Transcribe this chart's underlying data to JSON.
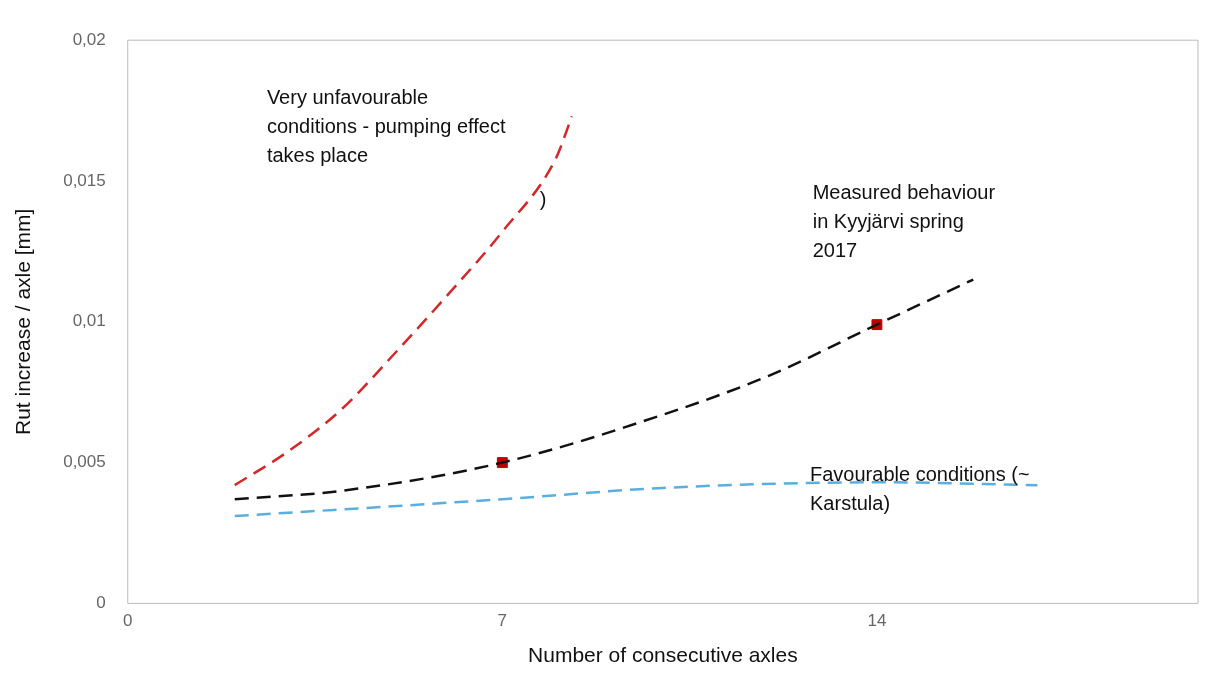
{
  "chart_data": {
    "type": "line",
    "xlabel": "Number of consecutive axles",
    "ylabel": "Rut increase / axle [mm]",
    "xlim": [
      0,
      20
    ],
    "xticks": [
      0,
      7,
      14
    ],
    "ylim": [
      0,
      0.02
    ],
    "yticks": [
      0,
      {
        "value": 0.005,
        "label": "0,005"
      },
      {
        "value": 0.01,
        "label": "0,01"
      },
      {
        "value": 0.015,
        "label": "0,015"
      },
      {
        "value": 0.02,
        "label": "0,02"
      }
    ],
    "grid": false,
    "legend": false,
    "line_style": "dashed",
    "series": [
      {
        "name": "Very unfavourable conditions - pumping effect takes place",
        "color": "#d62728",
        "x": [
          2,
          3,
          4,
          5,
          6,
          7,
          8,
          8.3
        ],
        "values": [
          0.0042,
          0.0054,
          0.0069,
          0.0089,
          0.011,
          0.0132,
          0.0158,
          0.0173
        ]
      },
      {
        "name": "Measured behaviour in Kyyjärvi spring 2017",
        "color": "#111111",
        "x": [
          2,
          4,
          7,
          10,
          12,
          14,
          15.8
        ],
        "values": [
          0.0037,
          0.004,
          0.005,
          0.0067,
          0.0081,
          0.0099,
          0.0115
        ]
      },
      {
        "name": "Favourable conditions (~ Karstula)",
        "color": "#5aaee0",
        "x": [
          2,
          7,
          10,
          14,
          17
        ],
        "values": [
          0.0031,
          0.0037,
          0.0041,
          0.0043,
          0.0042
        ]
      },
      {
        "type": "scatter",
        "color": "#c00000",
        "marker": "square",
        "x": [
          7,
          14
        ],
        "values": [
          0.005,
          0.0099
        ]
      }
    ],
    "annotations": [
      ")"
    ]
  }
}
